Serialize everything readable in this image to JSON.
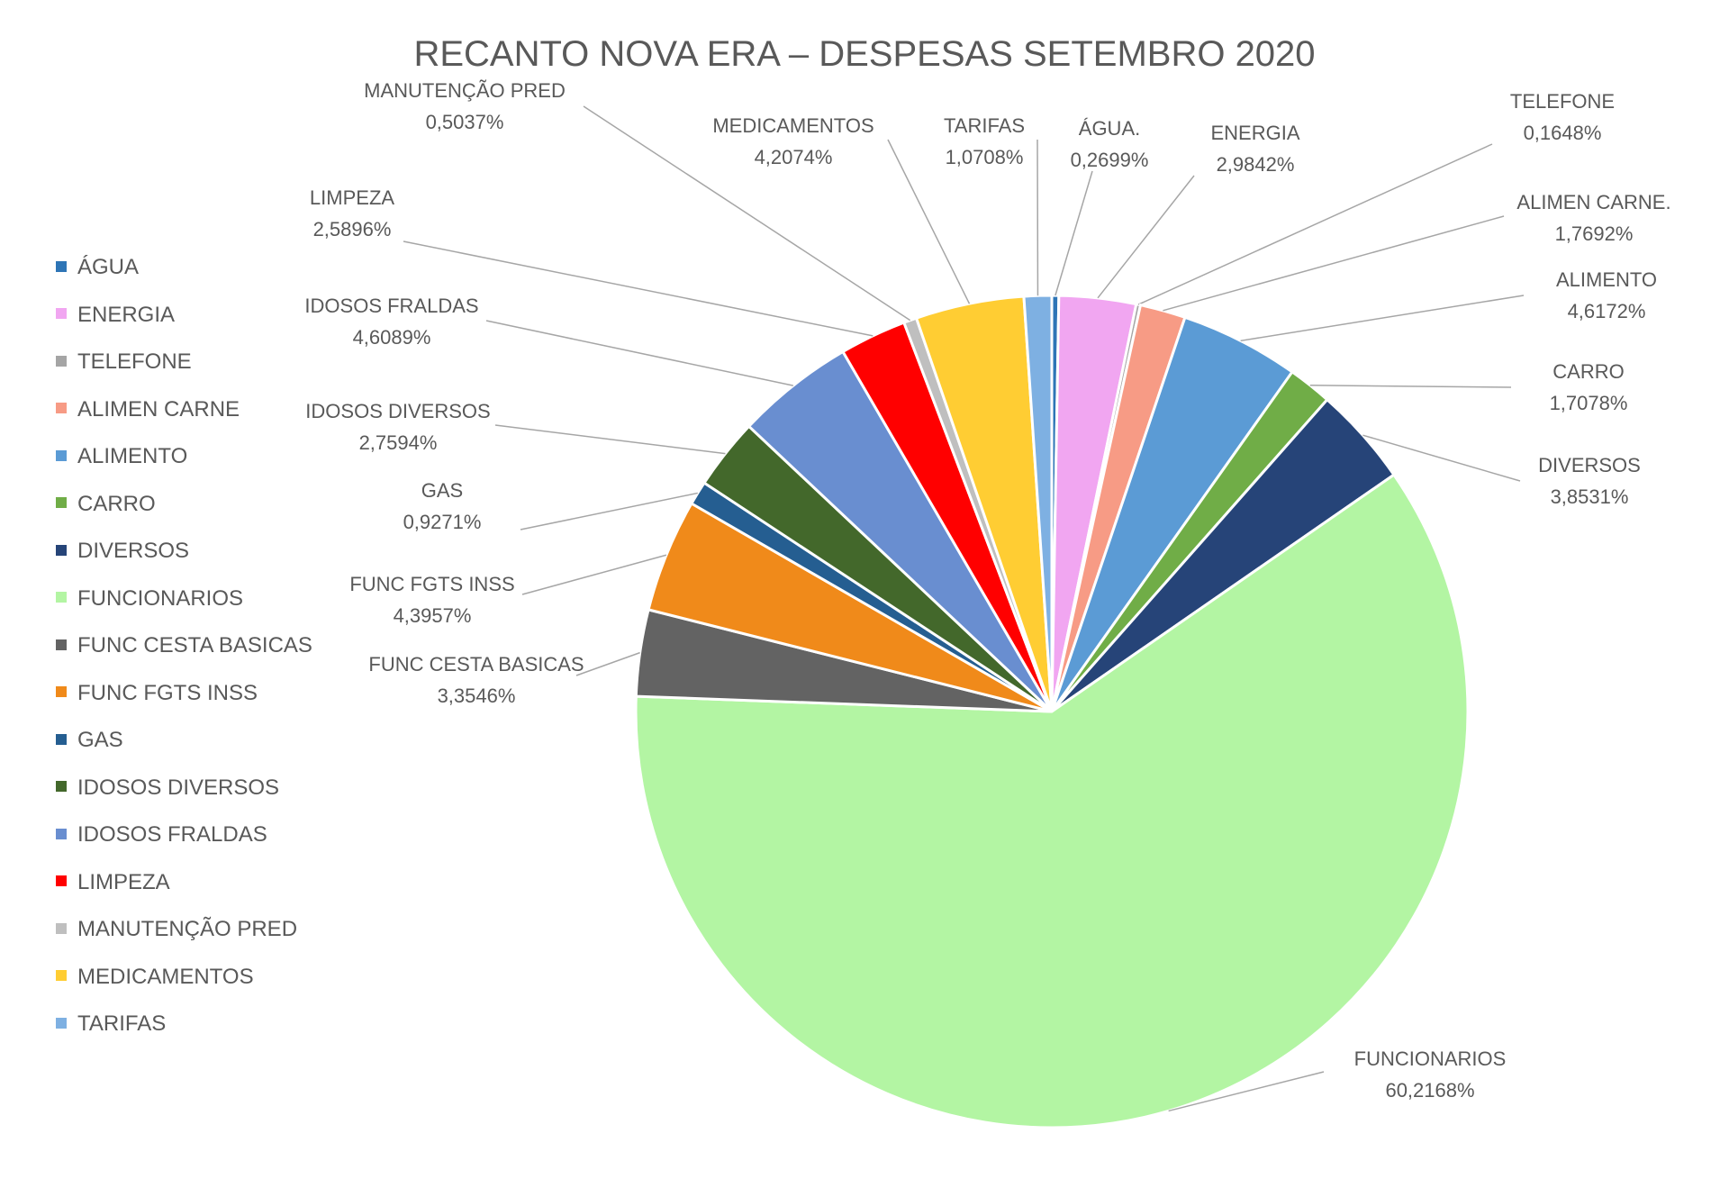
{
  "chart_data": {
    "type": "pie",
    "title": "RECANTO NOVA ERA – DESPESAS SETEMBRO 2020",
    "legend_position": "left",
    "slices": [
      {
        "legend": "ÁGUA",
        "label": "ÁGUA.",
        "value_text": "0,2699%",
        "value": 0.2699,
        "color": "#2E75B6"
      },
      {
        "legend": "ENERGIA",
        "label": "ENERGIA",
        "value_text": "2,9842%",
        "value": 2.9842,
        "color": "#F1A6F1"
      },
      {
        "legend": "TELEFONE",
        "label": "TELEFONE",
        "value_text": "0,1648%",
        "value": 0.1648,
        "color": "#A5A5A5"
      },
      {
        "legend": "ALIMEN CARNE",
        "label": "ALIMEN CARNE.",
        "value_text": "1,7692%",
        "value": 1.7692,
        "color": "#F79B85"
      },
      {
        "legend": "ALIMENTO",
        "label": "ALIMENTO",
        "value_text": "4,6172%",
        "value": 4.6172,
        "color": "#5B9BD5"
      },
      {
        "legend": "CARRO",
        "label": "CARRO",
        "value_text": "1,7078%",
        "value": 1.7078,
        "color": "#70AD47"
      },
      {
        "legend": "DIVERSOS",
        "label": "DIVERSOS",
        "value_text": "3,8531%",
        "value": 3.8531,
        "color": "#264478"
      },
      {
        "legend": "FUNCIONARIOS",
        "label": "FUNCIONARIOS",
        "value_text": "60,2168%",
        "value": 60.2168,
        "color": "#B3F5A3"
      },
      {
        "legend": "FUNC CESTA BASICAS",
        "label": "FUNC CESTA BASICAS",
        "value_text": "3,3546%",
        "value": 3.3546,
        "color": "#636363"
      },
      {
        "legend": "FUNC FGTS INSS",
        "label": "FUNC FGTS INSS",
        "value_text": "4,3957%",
        "value": 4.3957,
        "color": "#F08A1A"
      },
      {
        "legend": "GAS",
        "label": "GAS",
        "value_text": "0,9271%",
        "value": 0.9271,
        "color": "#255E91"
      },
      {
        "legend": "IDOSOS DIVERSOS",
        "label": "IDOSOS DIVERSOS",
        "value_text": "2,7594%",
        "value": 2.7594,
        "color": "#43682B"
      },
      {
        "legend": "IDOSOS FRALDAS",
        "label": "IDOSOS FRALDAS",
        "value_text": "4,6089%",
        "value": 4.6089,
        "color": "#698ED0"
      },
      {
        "legend": "LIMPEZA",
        "label": "LIMPEZA",
        "value_text": "2,5896%",
        "value": 2.5896,
        "color": "#FF0000"
      },
      {
        "legend": "MANUTENÇÃO PRED",
        "label": "MANUTENÇÃO PRED",
        "value_text": "0,5037%",
        "value": 0.5037,
        "color": "#BFBFBF"
      },
      {
        "legend": "MEDICAMENTOS",
        "label": "MEDICAMENTOS",
        "value_text": "4,2074%",
        "value": 4.2074,
        "color": "#FFCD33"
      },
      {
        "legend": "TARIFAS",
        "label": "TARIFAS",
        "value_text": "1,0708%",
        "value": 1.0708,
        "color": "#7EB0E2"
      }
    ]
  }
}
